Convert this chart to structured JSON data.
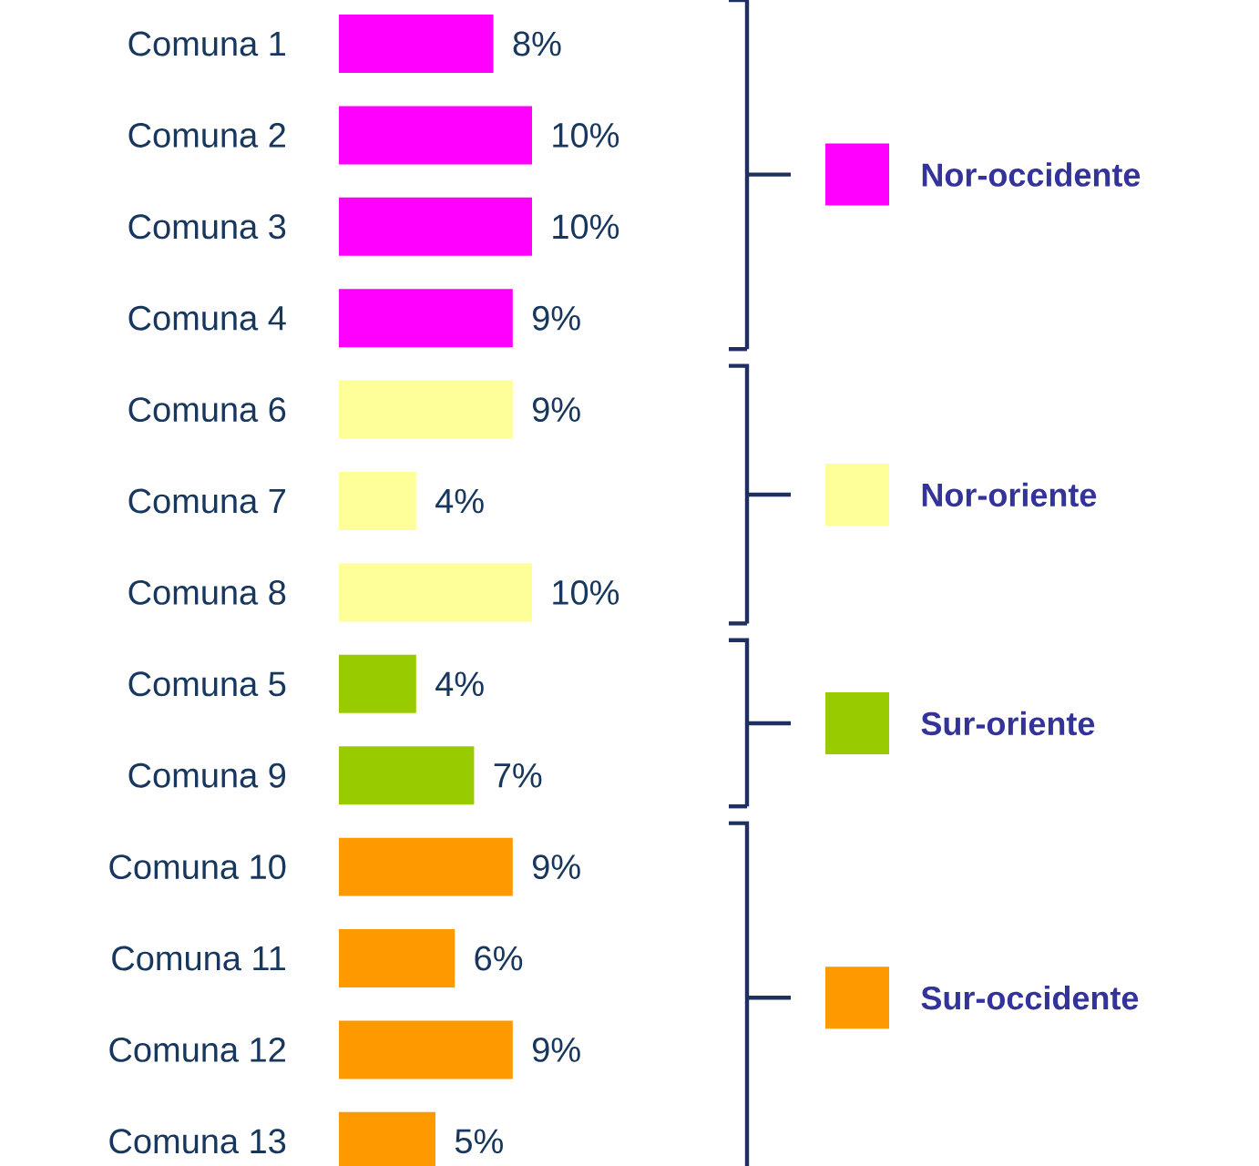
{
  "chart_data": {
    "type": "bar",
    "orientation": "horizontal",
    "categories": [
      "Comuna 1",
      "Comuna 2",
      "Comuna 3",
      "Comuna 4",
      "Comuna 6",
      "Comuna 7",
      "Comuna 8",
      "Comuna 5",
      "Comuna 9",
      "Comuna 10",
      "Comuna 11",
      "Comuna 12",
      "Comuna 13"
    ],
    "series": [
      {
        "name": "Nor-occidente",
        "color": "#ff00ff",
        "values": [
          8,
          10,
          10,
          9,
          null,
          null,
          null,
          null,
          null,
          null,
          null,
          null,
          null
        ],
        "value_labels": [
          "8%",
          "10%",
          "10%",
          "9%",
          null,
          null,
          null,
          null,
          null,
          null,
          null,
          null,
          null
        ]
      },
      {
        "name": "Nor-oriente",
        "color": "#ffff99",
        "values": [
          null,
          null,
          null,
          null,
          9,
          4,
          10,
          null,
          null,
          null,
          null,
          null,
          null
        ],
        "value_labels": [
          null,
          null,
          null,
          null,
          "9%",
          "4%",
          "10%",
          null,
          null,
          null,
          null,
          null,
          null
        ]
      },
      {
        "name": "Sur-oriente",
        "color": "#99cc00",
        "values": [
          null,
          null,
          null,
          null,
          null,
          null,
          null,
          4,
          7,
          null,
          null,
          null,
          null
        ],
        "value_labels": [
          null,
          null,
          null,
          null,
          null,
          null,
          null,
          "4%",
          "7%",
          null,
          null,
          null,
          null
        ]
      },
      {
        "name": "Sur-occidente",
        "color": "#ff9900",
        "values": [
          null,
          null,
          null,
          null,
          null,
          null,
          null,
          null,
          null,
          9,
          6,
          9,
          5
        ],
        "value_labels": [
          null,
          null,
          null,
          null,
          null,
          null,
          null,
          null,
          null,
          "9%",
          "6%",
          "9%",
          "5%"
        ]
      }
    ],
    "legend": "right"
  }
}
